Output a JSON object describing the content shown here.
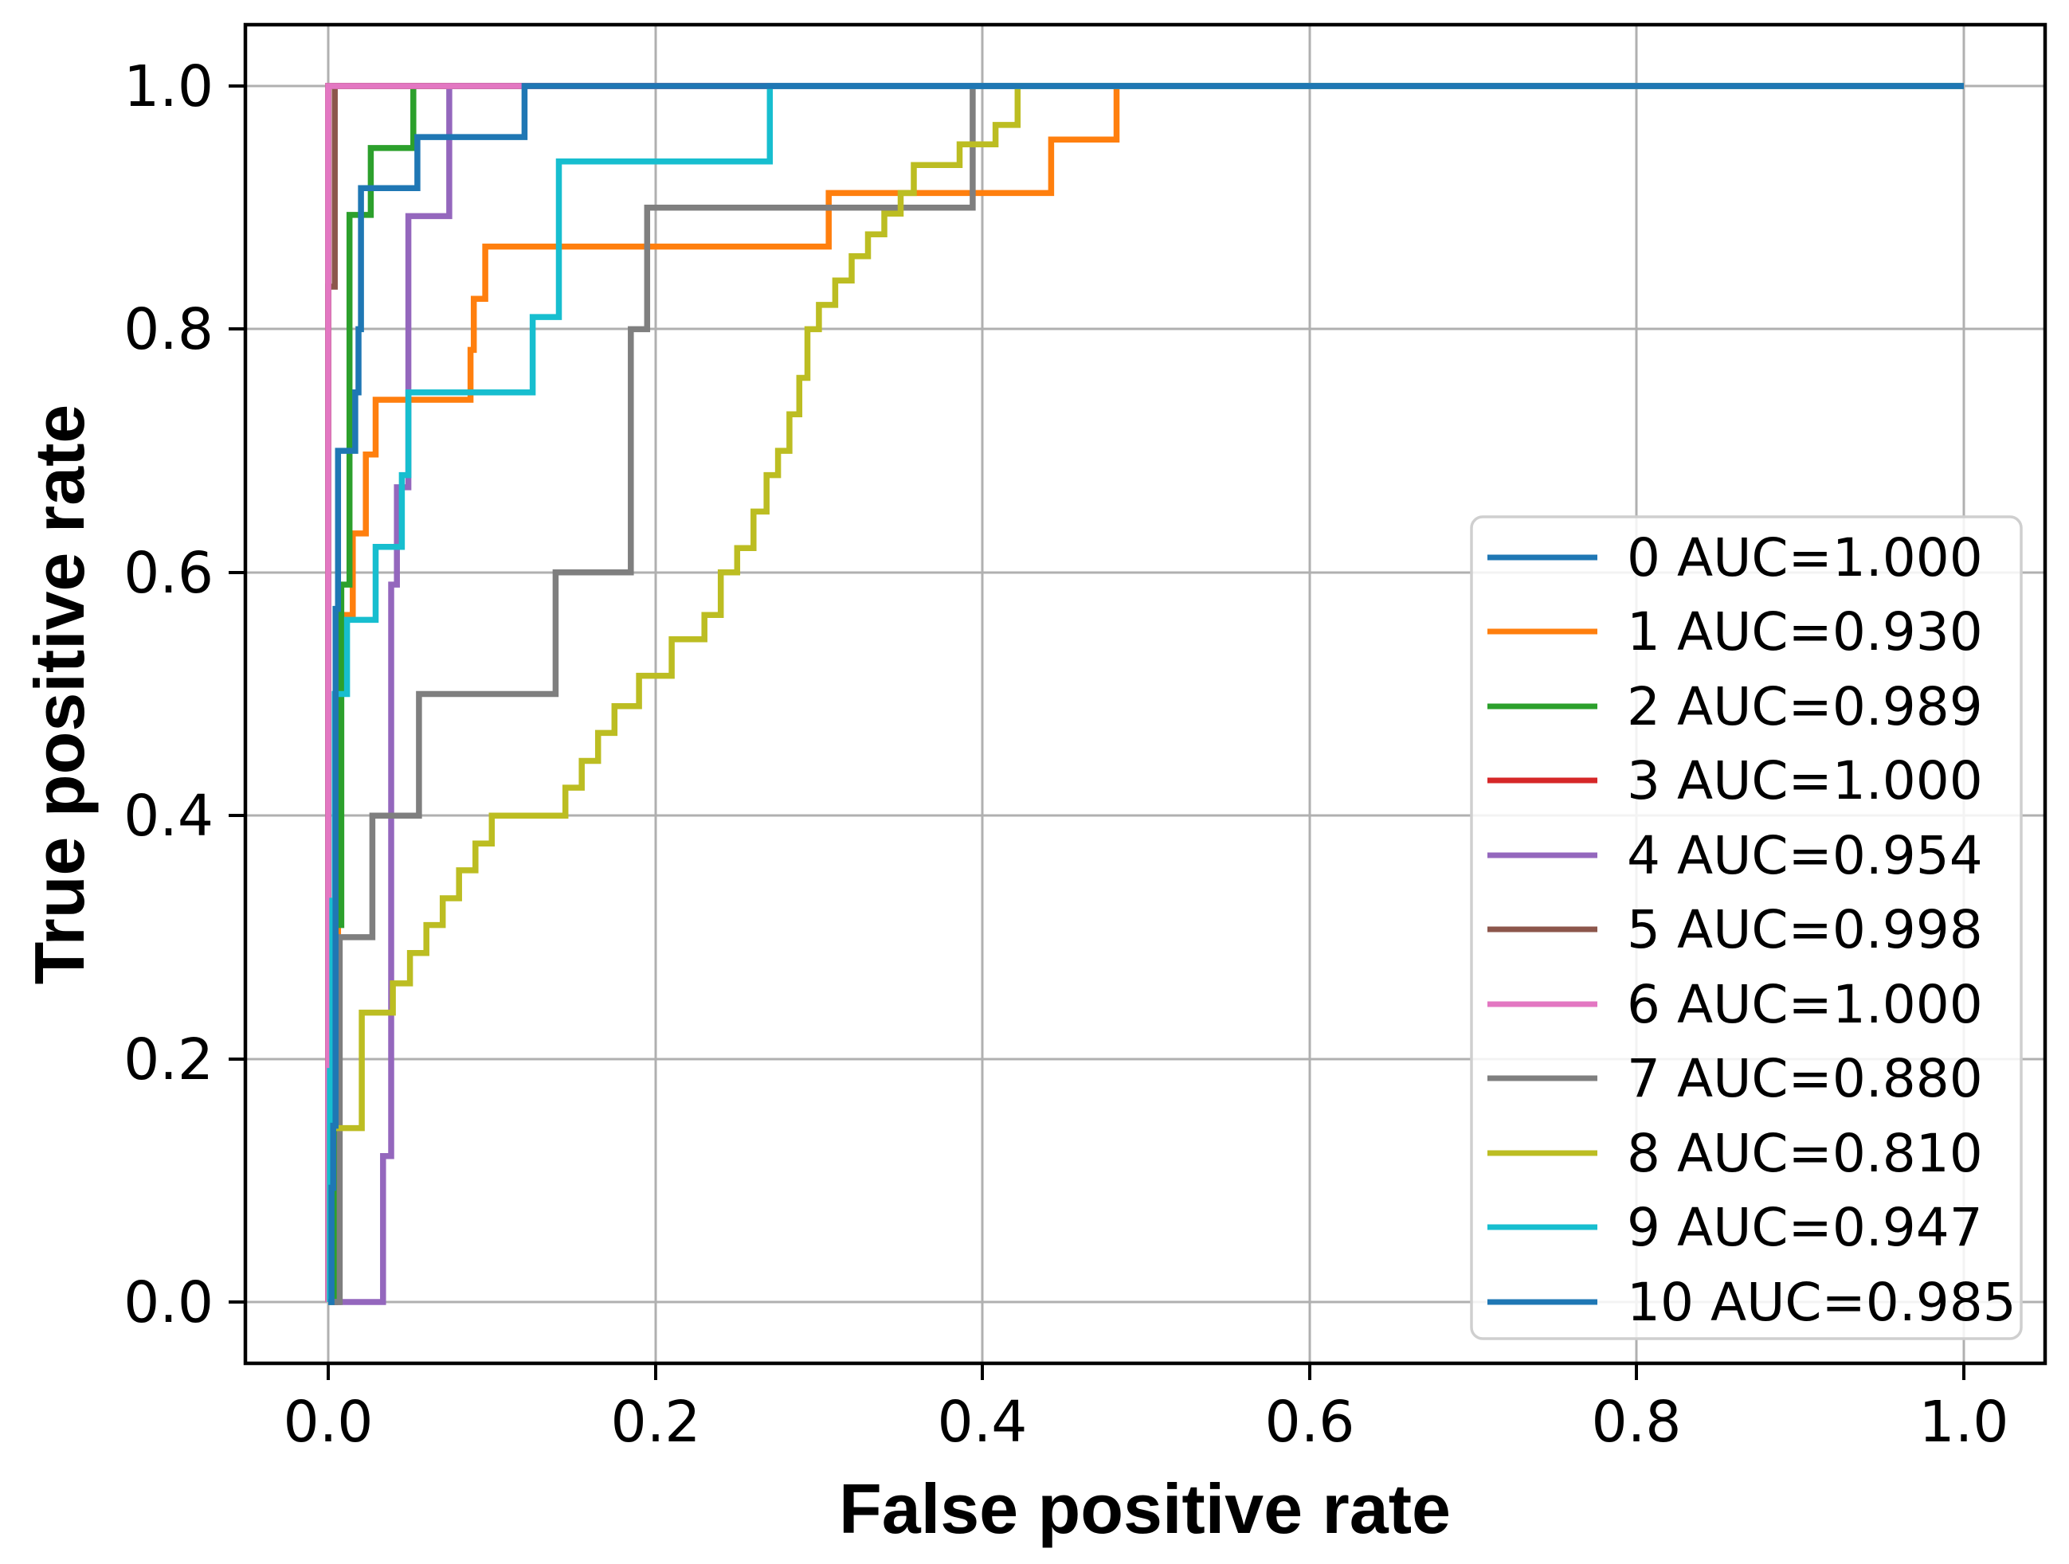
{
  "axes": {
    "xlabel": "False positive rate",
    "ylabel": "True positive rate",
    "x_ticks": [
      "0.0",
      "0.2",
      "0.4",
      "0.6",
      "0.8",
      "1.0"
    ],
    "y_ticks": [
      "0.0",
      "0.2",
      "0.4",
      "0.6",
      "0.8",
      "1.0"
    ]
  },
  "legend": {
    "position": "lower right",
    "entries": [
      {
        "label": "0 AUC=1.000",
        "color": "#1f77b4"
      },
      {
        "label": "1 AUC=0.930",
        "color": "#ff7f0e"
      },
      {
        "label": "2 AUC=0.989",
        "color": "#2ca02c"
      },
      {
        "label": "3 AUC=1.000",
        "color": "#d62728"
      },
      {
        "label": "4 AUC=0.954",
        "color": "#9467bd"
      },
      {
        "label": "5 AUC=0.998",
        "color": "#8c564b"
      },
      {
        "label": "6 AUC=1.000",
        "color": "#e377c2"
      },
      {
        "label": "7 AUC=0.880",
        "color": "#7f7f7f"
      },
      {
        "label": "8 AUC=0.810",
        "color": "#bcbd22"
      },
      {
        "label": "9 AUC=0.947",
        "color": "#17becf"
      },
      {
        "label": "10 AUC=0.985",
        "color": "#1f77b4"
      }
    ]
  },
  "chart_data": {
    "type": "line",
    "subtype": "roc-step-curves",
    "title": "",
    "xlabel": "False positive rate",
    "ylabel": "True positive rate",
    "x_range": [
      0,
      1
    ],
    "y_range": [
      0,
      1
    ],
    "axis_margin": 0.05,
    "x_tick_values": [
      0.0,
      0.2,
      0.4,
      0.6,
      0.8,
      1.0
    ],
    "y_tick_values": [
      0.0,
      0.2,
      0.4,
      0.6,
      0.8,
      1.0
    ],
    "grid": true,
    "grid_color": "#b0b0b0",
    "legend_position": "lower right",
    "series": [
      {
        "name": "0",
        "auc": "1.000",
        "color": "#1f77b4",
        "points": [
          [
            0,
            0
          ],
          [
            0,
            1
          ],
          [
            1,
            1
          ]
        ]
      },
      {
        "name": "1",
        "auc": "0.930",
        "color": "#ff7f0e",
        "points": [
          [
            0,
            0
          ],
          [
            0.006,
            0
          ],
          [
            0.006,
            0.565
          ],
          [
            0.015,
            0.565
          ],
          [
            0.015,
            0.632
          ],
          [
            0.023,
            0.632
          ],
          [
            0.023,
            0.697
          ],
          [
            0.029,
            0.697
          ],
          [
            0.029,
            0.742
          ],
          [
            0.087,
            0.742
          ],
          [
            0.087,
            0.783
          ],
          [
            0.089,
            0.783
          ],
          [
            0.089,
            0.825
          ],
          [
            0.096,
            0.825
          ],
          [
            0.096,
            0.868
          ],
          [
            0.306,
            0.868
          ],
          [
            0.306,
            0.912
          ],
          [
            0.442,
            0.912
          ],
          [
            0.442,
            0.956
          ],
          [
            0.482,
            0.956
          ],
          [
            0.482,
            1
          ],
          [
            1,
            1
          ]
        ]
      },
      {
        "name": "2",
        "auc": "0.989",
        "color": "#2ca02c",
        "points": [
          [
            0,
            0
          ],
          [
            0.004,
            0
          ],
          [
            0.004,
            0.31
          ],
          [
            0.008,
            0.31
          ],
          [
            0.008,
            0.59
          ],
          [
            0.013,
            0.59
          ],
          [
            0.013,
            0.894
          ],
          [
            0.026,
            0.894
          ],
          [
            0.026,
            0.949
          ],
          [
            0.052,
            0.949
          ],
          [
            0.052,
            1
          ],
          [
            1,
            1
          ]
        ]
      },
      {
        "name": "3",
        "auc": "1.000",
        "color": "#d62728",
        "points": [
          [
            0,
            0
          ],
          [
            0,
            1
          ],
          [
            1,
            1
          ]
        ]
      },
      {
        "name": "4",
        "auc": "0.954",
        "color": "#9467bd",
        "points": [
          [
            0,
            0
          ],
          [
            0.0335,
            0
          ],
          [
            0.0335,
            0.12
          ],
          [
            0.0385,
            0.12
          ],
          [
            0.0385,
            0.59
          ],
          [
            0.042,
            0.59
          ],
          [
            0.042,
            0.67
          ],
          [
            0.049,
            0.67
          ],
          [
            0.049,
            0.893
          ],
          [
            0.074,
            0.893
          ],
          [
            0.074,
            1
          ],
          [
            1,
            1
          ]
        ]
      },
      {
        "name": "5",
        "auc": "0.998",
        "color": "#8c564b",
        "points": [
          [
            0,
            0
          ],
          [
            0,
            0.835
          ],
          [
            0.004,
            0.835
          ],
          [
            0.004,
            1
          ],
          [
            1,
            1
          ]
        ]
      },
      {
        "name": "6",
        "auc": "1.000",
        "color": "#e377c2",
        "points": [
          [
            0,
            0
          ],
          [
            0,
            1
          ],
          [
            1,
            1
          ]
        ]
      },
      {
        "name": "7",
        "auc": "0.880",
        "color": "#7f7f7f",
        "points": [
          [
            0,
            0
          ],
          [
            0.007,
            0
          ],
          [
            0.007,
            0.3
          ],
          [
            0.027,
            0.3
          ],
          [
            0.027,
            0.4
          ],
          [
            0.0555,
            0.4
          ],
          [
            0.0555,
            0.5
          ],
          [
            0.139,
            0.5
          ],
          [
            0.139,
            0.6
          ],
          [
            0.185,
            0.6
          ],
          [
            0.185,
            0.8
          ],
          [
            0.195,
            0.8
          ],
          [
            0.195,
            0.9
          ],
          [
            0.394,
            0.9
          ],
          [
            0.394,
            1
          ],
          [
            1,
            1
          ]
        ]
      },
      {
        "name": "8",
        "auc": "0.810",
        "color": "#bcbd22",
        "points": [
          [
            0,
            0
          ],
          [
            0.001,
            0
          ],
          [
            0.001,
            0.143
          ],
          [
            0.0205,
            0.143
          ],
          [
            0.0205,
            0.238
          ],
          [
            0.0395,
            0.238
          ],
          [
            0.0395,
            0.262
          ],
          [
            0.05,
            0.262
          ],
          [
            0.05,
            0.287
          ],
          [
            0.06,
            0.287
          ],
          [
            0.06,
            0.31
          ],
          [
            0.07,
            0.31
          ],
          [
            0.07,
            0.332
          ],
          [
            0.08,
            0.332
          ],
          [
            0.08,
            0.355
          ],
          [
            0.09,
            0.355
          ],
          [
            0.09,
            0.377
          ],
          [
            0.1,
            0.377
          ],
          [
            0.1,
            0.4
          ],
          [
            0.145,
            0.4
          ],
          [
            0.145,
            0.423
          ],
          [
            0.155,
            0.423
          ],
          [
            0.155,
            0.445
          ],
          [
            0.165,
            0.445
          ],
          [
            0.165,
            0.468
          ],
          [
            0.175,
            0.468
          ],
          [
            0.175,
            0.49
          ],
          [
            0.19,
            0.49
          ],
          [
            0.19,
            0.515
          ],
          [
            0.21,
            0.515
          ],
          [
            0.21,
            0.545
          ],
          [
            0.23,
            0.545
          ],
          [
            0.23,
            0.565
          ],
          [
            0.24,
            0.565
          ],
          [
            0.24,
            0.6
          ],
          [
            0.25,
            0.6
          ],
          [
            0.25,
            0.62
          ],
          [
            0.26,
            0.62
          ],
          [
            0.26,
            0.65
          ],
          [
            0.268,
            0.65
          ],
          [
            0.268,
            0.68
          ],
          [
            0.275,
            0.68
          ],
          [
            0.275,
            0.7
          ],
          [
            0.282,
            0.7
          ],
          [
            0.282,
            0.73
          ],
          [
            0.288,
            0.73
          ],
          [
            0.288,
            0.76
          ],
          [
            0.293,
            0.76
          ],
          [
            0.293,
            0.8
          ],
          [
            0.3,
            0.8
          ],
          [
            0.3,
            0.82
          ],
          [
            0.31,
            0.82
          ],
          [
            0.31,
            0.84
          ],
          [
            0.32,
            0.84
          ],
          [
            0.32,
            0.86
          ],
          [
            0.33,
            0.86
          ],
          [
            0.33,
            0.878
          ],
          [
            0.34,
            0.878
          ],
          [
            0.34,
            0.895
          ],
          [
            0.35,
            0.895
          ],
          [
            0.35,
            0.912
          ],
          [
            0.358,
            0.912
          ],
          [
            0.358,
            0.935
          ],
          [
            0.386,
            0.935
          ],
          [
            0.386,
            0.952
          ],
          [
            0.408,
            0.952
          ],
          [
            0.408,
            0.968
          ],
          [
            0.4215,
            0.968
          ],
          [
            0.4215,
            1
          ],
          [
            1,
            1
          ]
        ]
      },
      {
        "name": "9",
        "auc": "0.947",
        "color": "#17becf",
        "points": [
          [
            0,
            0
          ],
          [
            0.001,
            0
          ],
          [
            0.001,
            0.19
          ],
          [
            0.0025,
            0.19
          ],
          [
            0.0025,
            0.33
          ],
          [
            0.004,
            0.33
          ],
          [
            0.004,
            0.5
          ],
          [
            0.0115,
            0.5
          ],
          [
            0.0115,
            0.561
          ],
          [
            0.029,
            0.561
          ],
          [
            0.029,
            0.621
          ],
          [
            0.045,
            0.621
          ],
          [
            0.045,
            0.68
          ],
          [
            0.049,
            0.68
          ],
          [
            0.049,
            0.748
          ],
          [
            0.125,
            0.748
          ],
          [
            0.125,
            0.81
          ],
          [
            0.141,
            0.81
          ],
          [
            0.141,
            0.938
          ],
          [
            0.27,
            0.938
          ],
          [
            0.27,
            1
          ],
          [
            1,
            1
          ]
        ]
      },
      {
        "name": "10",
        "auc": "0.985",
        "color": "#1f77b4",
        "points": [
          [
            0,
            0
          ],
          [
            0.002,
            0
          ],
          [
            0.002,
            0.094
          ],
          [
            0.003,
            0.094
          ],
          [
            0.003,
            0.145
          ],
          [
            0.0045,
            0.145
          ],
          [
            0.0045,
            0.57
          ],
          [
            0.006,
            0.57
          ],
          [
            0.006,
            0.7
          ],
          [
            0.0165,
            0.7
          ],
          [
            0.0165,
            0.748
          ],
          [
            0.0185,
            0.748
          ],
          [
            0.0185,
            0.8
          ],
          [
            0.02,
            0.8
          ],
          [
            0.02,
            0.916
          ],
          [
            0.0545,
            0.916
          ],
          [
            0.0545,
            0.958
          ],
          [
            0.12,
            0.958
          ],
          [
            0.12,
            1
          ],
          [
            1,
            1
          ]
        ]
      }
    ]
  }
}
